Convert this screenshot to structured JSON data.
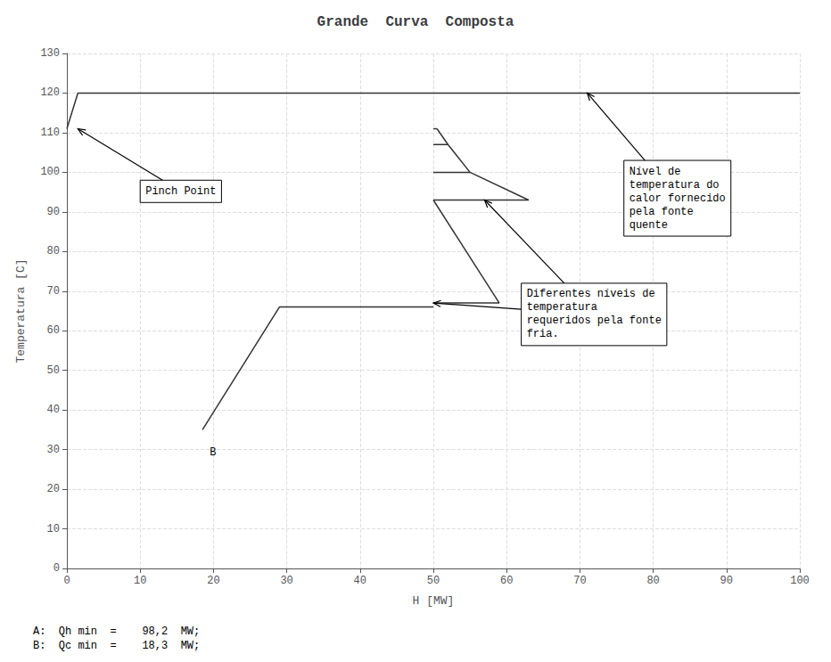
{
  "chart_data": {
    "type": "line",
    "title": "Grande  Curva  Composta",
    "xlabel": "H [MW]",
    "ylabel": "Temperatura [C]",
    "xlim": [
      0,
      100
    ],
    "ylim": [
      0,
      130
    ],
    "xticks": [
      0,
      10,
      20,
      30,
      40,
      50,
      60,
      70,
      80,
      90,
      100
    ],
    "yticks": [
      0,
      10,
      20,
      30,
      40,
      50,
      60,
      70,
      80,
      90,
      100,
      110,
      120,
      130
    ],
    "grid": true,
    "color": "#333333",
    "series": [
      {
        "x": [
          0,
          1.5,
          100
        ],
        "values": [
          111,
          120,
          120
        ]
      },
      {
        "x": [
          18.5,
          29,
          50
        ],
        "values": [
          35,
          66,
          66
        ]
      },
      {
        "x": [
          50,
          59
        ],
        "values": [
          67,
          67
        ]
      },
      {
        "x": [
          59,
          50
        ],
        "values": [
          67,
          93
        ]
      },
      {
        "x": [
          50,
          63
        ],
        "values": [
          93,
          93
        ]
      },
      {
        "x": [
          63,
          55
        ],
        "values": [
          93,
          100
        ]
      },
      {
        "x": [
          50,
          55
        ],
        "values": [
          100,
          100
        ]
      },
      {
        "x": [
          55,
          52
        ],
        "values": [
          100,
          107
        ]
      },
      {
        "x": [
          50,
          52
        ],
        "values": [
          107,
          107
        ]
      },
      {
        "x": [
          52,
          50.5
        ],
        "values": [
          107,
          111
        ]
      },
      {
        "x": [
          50,
          50.5
        ],
        "values": [
          111,
          111
        ]
      }
    ],
    "annotations": [
      {
        "text": "B",
        "x": 19.5,
        "y": 28
      },
      {
        "text": "Pinch Point",
        "x": 10,
        "y": 98,
        "arrows": [
          [
            1.5,
            111
          ]
        ]
      },
      {
        "text": "Nível de\ntemperatura do\ncalor fornecido\npela fonte\nquente",
        "x": 76,
        "y": 103,
        "arrows": [
          [
            71,
            120
          ]
        ]
      },
      {
        "text": "Diferentes níveis de\ntemperatura\nrequeridos pela fonte\nfria.",
        "x": 62,
        "y": 72,
        "arrows": [
          [
            57,
            93
          ],
          [
            50,
            67
          ]
        ]
      }
    ],
    "footer": "A:  Qh min  =    98,2  MW;\nB:  Qc min  =    18,3  MW;"
  }
}
